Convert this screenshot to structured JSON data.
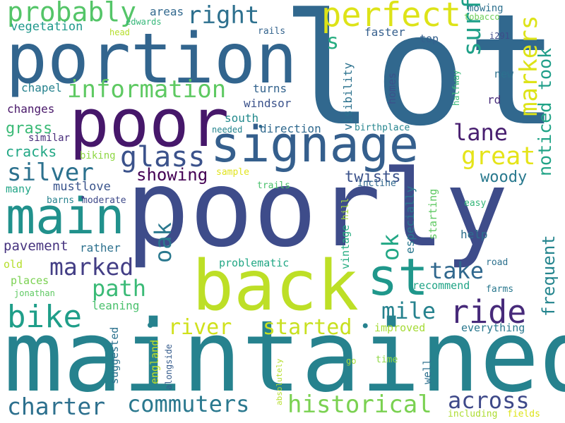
{
  "words": [
    {
      "text": "lot",
      "color": "#31688e"
    },
    {
      "text": "poorly",
      "color": "#3e4c8a"
    },
    {
      "text": "maintained",
      "color": "#26828e"
    },
    {
      "text": "portion",
      "color": "#32658e"
    },
    {
      "text": "poor",
      "color": "#46176a"
    },
    {
      "text": "back",
      "color": "#bddf26"
    },
    {
      "text": "signage",
      "color": "#355f8d"
    },
    {
      "text": "main",
      "color": "#21918c"
    },
    {
      "text": "st",
      "color": "#1f978b"
    },
    {
      "text": "perfect",
      "color": "#dde318"
    },
    {
      "text": "probably",
      "color": "#54c568"
    },
    {
      "text": "information",
      "color": "#5ec962"
    },
    {
      "text": "right",
      "color": "#2d708e"
    },
    {
      "text": "ride",
      "color": "#472a7a"
    },
    {
      "text": "bike",
      "color": "#1f9e89"
    },
    {
      "text": "glass",
      "color": "#3b528b"
    },
    {
      "text": "silver",
      "color": "#2c718e"
    },
    {
      "text": "river",
      "color": "#d0e11c"
    },
    {
      "text": "started",
      "color": "#c8e020"
    },
    {
      "text": "historical",
      "color": "#7ad151"
    },
    {
      "text": "commuters",
      "color": "#2a788e"
    },
    {
      "text": "charter",
      "color": "#2d708e"
    },
    {
      "text": "across",
      "color": "#3e4989"
    },
    {
      "text": "surface",
      "color": "#1fa088"
    },
    {
      "text": "markers",
      "color": "#dde318"
    },
    {
      "text": "noticed",
      "color": "#20a386"
    },
    {
      "text": "took",
      "color": "#1f9e89"
    },
    {
      "text": "great",
      "color": "#e5e419"
    },
    {
      "text": "lane",
      "color": "#481f70"
    },
    {
      "text": "path",
      "color": "#3aba76"
    },
    {
      "text": "marked",
      "color": "#433e85"
    },
    {
      "text": "oak",
      "color": "#2a788e"
    },
    {
      "text": "ok",
      "color": "#22a785"
    },
    {
      "text": "mile",
      "color": "#26828e"
    },
    {
      "text": "take",
      "color": "#31688e"
    },
    {
      "text": "frequent",
      "color": "#25858e"
    },
    {
      "text": "showing",
      "color": "#440154"
    },
    {
      "text": "twists",
      "color": "#3b528b"
    },
    {
      "text": "woody",
      "color": "#29798e"
    },
    {
      "text": "grass",
      "color": "#3aba76"
    },
    {
      "text": "cracks",
      "color": "#22a785"
    },
    {
      "text": "s",
      "color": "#27ad81"
    },
    {
      "text": "pavement",
      "color": "#46337f"
    },
    {
      "text": "mustlove",
      "color": "#3a548c"
    },
    {
      "text": "many",
      "color": "#20a486"
    },
    {
      "text": "vegetation",
      "color": "#1f988b"
    },
    {
      "text": "chapel",
      "color": "#26828e"
    },
    {
      "text": "changes",
      "color": "#481769"
    },
    {
      "text": "similar",
      "color": "#472c7a"
    },
    {
      "text": "biking",
      "color": "#8fd744"
    },
    {
      "text": "barns",
      "color": "#26828e"
    },
    {
      "text": "moderate",
      "color": "#3e4989"
    },
    {
      "text": "rather",
      "color": "#2d718e"
    },
    {
      "text": "old",
      "color": "#b5de2b"
    },
    {
      "text": "places",
      "color": "#7ad151"
    },
    {
      "text": "jonathan",
      "color": "#5ec962"
    },
    {
      "text": "leaning",
      "color": "#4ac16d"
    },
    {
      "text": "suggested",
      "color": "#2c728e"
    },
    {
      "text": "england",
      "color": "#c0df25"
    },
    {
      "text": "alongside",
      "color": "#365c8d"
    },
    {
      "text": "areas",
      "color": "#31688e"
    },
    {
      "text": "edwards",
      "color": "#35b779"
    },
    {
      "text": "head",
      "color": "#b5de2b"
    },
    {
      "text": "rails",
      "color": "#33638d"
    },
    {
      "text": "south",
      "color": "#238a8d"
    },
    {
      "text": "needed",
      "color": "#25848e"
    },
    {
      "text": "direction",
      "color": "#30698e"
    },
    {
      "text": "windsor",
      "color": "#3b528b"
    },
    {
      "text": "turns",
      "color": "#33638d"
    },
    {
      "text": "visibility",
      "color": "#2c728e"
    },
    {
      "text": "faster",
      "color": "#355f8d"
    },
    {
      "text": "homes",
      "color": "#3b528b"
    },
    {
      "text": "birthplace",
      "color": "#25858e"
    },
    {
      "text": "incline",
      "color": "#31688e"
    },
    {
      "text": "hill",
      "color": "#a5db36"
    },
    {
      "text": "vintage",
      "color": "#26ad81"
    },
    {
      "text": "especially",
      "color": "#2a788e"
    },
    {
      "text": "starting",
      "color": "#5ec962"
    },
    {
      "text": "sample",
      "color": "#e1e41e"
    },
    {
      "text": "trails",
      "color": "#4ac16d"
    },
    {
      "text": "problematic",
      "color": "#22a785"
    },
    {
      "text": "recommend",
      "color": "#20a486"
    },
    {
      "text": "improved",
      "color": "#a5db36"
    },
    {
      "text": "everything",
      "color": "#2a788e"
    },
    {
      "text": "absolutely",
      "color": "#b5de2b"
    },
    {
      "text": "go",
      "color": "#a5db36"
    },
    {
      "text": "time",
      "color": "#8fd744"
    },
    {
      "text": "well",
      "color": "#2d708e"
    },
    {
      "text": "including",
      "color": "#addc30"
    },
    {
      "text": "fields",
      "color": "#dde318"
    },
    {
      "text": "mowing",
      "color": "#2d708e"
    },
    {
      "text": "tobacco",
      "color": "#6ece58"
    },
    {
      "text": "top",
      "color": "#34608d"
    },
    {
      "text": "i291",
      "color": "#3e4c8a"
    },
    {
      "text": "new",
      "color": "#2c718e"
    },
    {
      "text": "halfway",
      "color": "#38b977"
    },
    {
      "text": "rd",
      "color": "#472c7a"
    },
    {
      "text": "easy",
      "color": "#34b679"
    },
    {
      "text": "help",
      "color": "#2d708e"
    },
    {
      "text": "road",
      "color": "#2d718e"
    },
    {
      "text": "farms",
      "color": "#2a788e"
    }
  ]
}
